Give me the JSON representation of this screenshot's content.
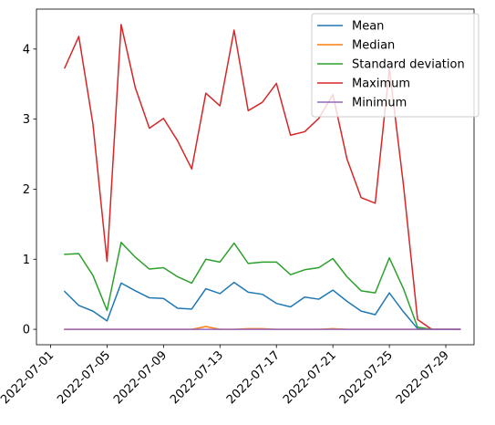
{
  "chart_data": {
    "type": "line",
    "title": "",
    "xlabel": "",
    "ylabel": "",
    "x_type": "date",
    "x": [
      "2022-07-02",
      "2022-07-03",
      "2022-07-04",
      "2022-07-05",
      "2022-07-06",
      "2022-07-07",
      "2022-07-08",
      "2022-07-09",
      "2022-07-10",
      "2022-07-11",
      "2022-07-12",
      "2022-07-13",
      "2022-07-14",
      "2022-07-15",
      "2022-07-16",
      "2022-07-17",
      "2022-07-18",
      "2022-07-19",
      "2022-07-20",
      "2022-07-21",
      "2022-07-22",
      "2022-07-23",
      "2022-07-24",
      "2022-07-25",
      "2022-07-26",
      "2022-07-27",
      "2022-07-28",
      "2022-07-29",
      "2022-07-30"
    ],
    "xlim": [
      "2022-06-30",
      "2022-07-31"
    ],
    "x_ticks": [
      "2022-07-01",
      "2022-07-05",
      "2022-07-09",
      "2022-07-13",
      "2022-07-17",
      "2022-07-21",
      "2022-07-25",
      "2022-07-29"
    ],
    "x_tick_labels": [
      "2022-07-01",
      "2022-07-05",
      "2022-07-09",
      "2022-07-13",
      "2022-07-17",
      "2022-07-21",
      "2022-07-25",
      "2022-07-29"
    ],
    "x_tick_rotation": 45,
    "ylim": [
      -0.22,
      4.57
    ],
    "y_ticks": [
      0,
      1,
      2,
      3,
      4
    ],
    "y_tick_labels": [
      "0",
      "1",
      "2",
      "3",
      "4"
    ],
    "grid": false,
    "legend": "top-right",
    "series": [
      {
        "name": "Mean",
        "color": "#1f77b4",
        "values": [
          0.54,
          0.34,
          0.26,
          0.12,
          0.66,
          0.55,
          0.45,
          0.44,
          0.3,
          0.29,
          0.58,
          0.51,
          0.67,
          0.53,
          0.5,
          0.37,
          0.32,
          0.46,
          0.43,
          0.56,
          0.4,
          0.26,
          0.21,
          0.52,
          0.25,
          0.01,
          0.0,
          0.0,
          0.0
        ]
      },
      {
        "name": "Median",
        "color": "#ff7f0e",
        "values": [
          0.0,
          0.0,
          0.0,
          0.0,
          0.0,
          0.0,
          0.0,
          0.0,
          0.0,
          0.0,
          0.04,
          0.0,
          0.0,
          0.01,
          0.01,
          0.0,
          0.0,
          0.0,
          0.0,
          0.01,
          0.0,
          0.0,
          0.0,
          0.0,
          0.0,
          0.0,
          0.0,
          0.0,
          0.0
        ]
      },
      {
        "name": "Standard deviation",
        "color": "#2ca02c",
        "values": [
          1.07,
          1.08,
          0.77,
          0.27,
          1.24,
          1.03,
          0.86,
          0.88,
          0.75,
          0.66,
          1.0,
          0.96,
          1.23,
          0.94,
          0.96,
          0.96,
          0.78,
          0.85,
          0.88,
          1.01,
          0.75,
          0.55,
          0.52,
          1.02,
          0.58,
          0.03,
          0.0,
          0.0,
          0.0
        ]
      },
      {
        "name": "Maximum",
        "color": "#d62728",
        "values": [
          3.73,
          4.18,
          2.93,
          0.97,
          4.35,
          3.45,
          2.87,
          3.01,
          2.69,
          2.29,
          3.37,
          3.19,
          4.27,
          3.12,
          3.24,
          3.51,
          2.77,
          2.82,
          3.01,
          3.35,
          2.43,
          1.88,
          1.8,
          3.72,
          2.06,
          0.14,
          0.0,
          0.0,
          0.0
        ]
      },
      {
        "name": "Minimum",
        "color": "#9467bd",
        "values": [
          0.0,
          0.0,
          0.0,
          0.0,
          0.0,
          0.0,
          0.0,
          0.0,
          0.0,
          0.0,
          0.0,
          0.0,
          0.0,
          0.0,
          0.0,
          0.0,
          0.0,
          0.0,
          0.0,
          0.0,
          0.0,
          0.0,
          0.0,
          0.0,
          0.0,
          0.0,
          0.0,
          0.0,
          0.0
        ]
      }
    ]
  }
}
